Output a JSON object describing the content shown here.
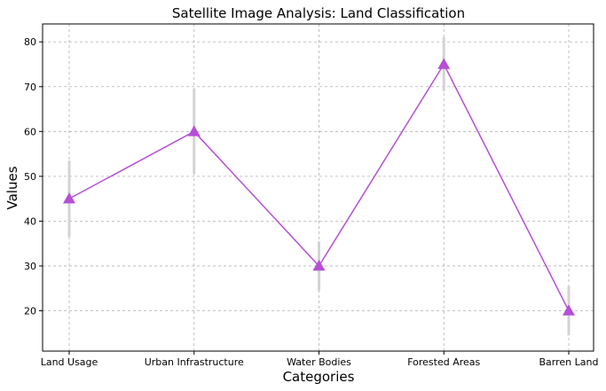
{
  "chart_data": {
    "type": "line",
    "title": "Satellite Image Analysis: Land Classification",
    "xlabel": "Categories",
    "ylabel": "Values",
    "categories": [
      "Land Usage",
      "Urban Infrastructure",
      "Water Bodies",
      "Forested Areas",
      "Barren Land"
    ],
    "values": [
      45,
      60,
      30,
      75,
      20
    ],
    "error": [
      8.5,
      9.5,
      5.5,
      6,
      5.5
    ],
    "ylim": [
      11,
      84
    ],
    "yticks": [
      20,
      30,
      40,
      50,
      60,
      70,
      80
    ],
    "grid": true,
    "marker": "triangle",
    "colors": {
      "line": "#b64fd6",
      "marker": "#b64fd6",
      "error": "#d3d3d3"
    }
  }
}
